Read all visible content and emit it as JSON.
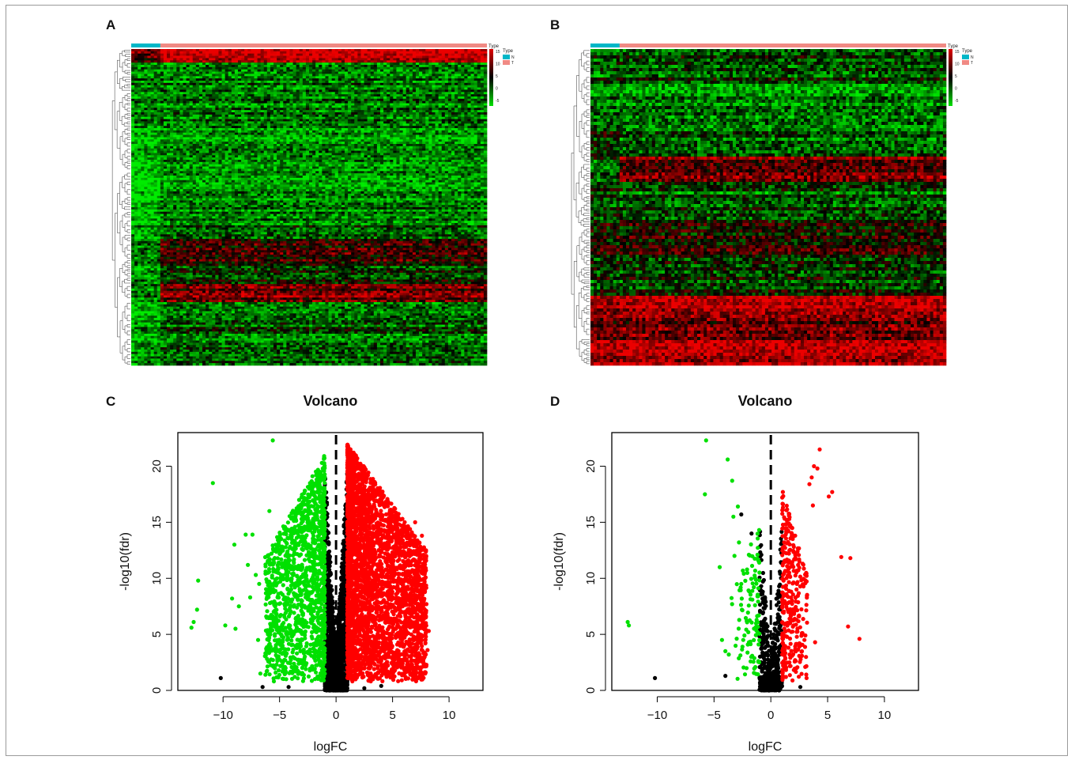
{
  "panels": {
    "A": "A",
    "B": "B",
    "C": "C",
    "D": "D"
  },
  "chart_data": [
    {
      "id": "A",
      "type": "heatmap",
      "title": "",
      "annotation": {
        "track_title": "Type",
        "legend_title": "Type",
        "groups": [
          {
            "label": "N",
            "color": "#00b7c7",
            "fraction": 0.082
          },
          {
            "label": "T",
            "color": "#f08a84",
            "fraction": 0.918
          }
        ]
      },
      "colorbar": {
        "ticks": [
          15,
          10,
          5,
          0,
          -5
        ],
        "low": "#00e000",
        "mid": "#000000",
        "high": "#e00000"
      },
      "dendrogram": "rows",
      "row_blocks": [
        {
          "rows": 6,
          "normal": 0.45,
          "tumor": 0.95
        },
        {
          "rows": 28,
          "normal": -0.55,
          "tumor": -0.5
        },
        {
          "rows": 20,
          "normal": -0.8,
          "tumor": -0.65
        },
        {
          "rows": 18,
          "normal": -0.9,
          "tumor": -0.55
        },
        {
          "rows": 12,
          "normal": -0.75,
          "tumor": -0.4
        },
        {
          "rows": 10,
          "normal": -0.5,
          "tumor": 0.25
        },
        {
          "rows": 10,
          "normal": -0.6,
          "tumor": -0.15
        },
        {
          "rows": 8,
          "normal": -0.55,
          "tumor": 0.45
        },
        {
          "rows": 14,
          "normal": -0.7,
          "tumor": -0.35
        },
        {
          "rows": 14,
          "normal": -0.6,
          "tumor": -0.4
        }
      ],
      "columns": 110
    },
    {
      "id": "B",
      "type": "heatmap",
      "title": "",
      "annotation": {
        "track_title": "Type",
        "legend_title": "Type",
        "groups": [
          {
            "label": "N",
            "color": "#00b7c7",
            "fraction": 0.082
          },
          {
            "label": "T",
            "color": "#f08a84",
            "fraction": 0.918
          }
        ]
      },
      "colorbar": {
        "ticks": [
          15,
          10,
          5,
          0,
          -5
        ],
        "low": "#00e000",
        "mid": "#000000",
        "high": "#e00000"
      },
      "dendrogram": "rows",
      "row_blocks": [
        {
          "rows": 10,
          "normal": -0.3,
          "tumor": -0.25
        },
        {
          "rows": 14,
          "normal": -0.45,
          "tumor": -0.5
        },
        {
          "rows": 10,
          "normal": -0.2,
          "tumor": -0.45
        },
        {
          "rows": 8,
          "normal": -0.35,
          "tumor": 0.5
        },
        {
          "rows": 12,
          "normal": -0.3,
          "tumor": -0.35
        },
        {
          "rows": 12,
          "normal": 0.05,
          "tumor": 0.1
        },
        {
          "rows": 12,
          "normal": -0.2,
          "tumor": -0.2
        },
        {
          "rows": 4,
          "normal": 0.8,
          "tumor": 0.85
        },
        {
          "rows": 10,
          "normal": 0.35,
          "tumor": 0.45
        },
        {
          "rows": 8,
          "normal": 0.6,
          "tumor": 0.65
        }
      ],
      "columns": 110
    },
    {
      "id": "C",
      "type": "scatter",
      "title": "Volcano",
      "xlabel": "logFC",
      "ylabel": "-log10(fdr)",
      "xlim": [
        -14,
        13
      ],
      "ylim": [
        0,
        23
      ],
      "xticks": [
        -10,
        -5,
        0,
        5,
        10
      ],
      "yticks": [
        0,
        5,
        10,
        15,
        20
      ],
      "cutoff_x": 0,
      "series": [
        {
          "color": "#00e000",
          "count": 1400,
          "x_range": [
            -6.3,
            -1.0
          ],
          "y_range": [
            0.8,
            21
          ]
        },
        {
          "color": "#ff0000",
          "count": 3400,
          "x_range": [
            1.0,
            8.0
          ],
          "y_range": [
            0.8,
            22
          ]
        },
        {
          "color": "#000000",
          "count": 1900,
          "x_range": [
            -1.0,
            1.0
          ],
          "y_range": [
            0,
            20
          ]
        }
      ],
      "outliers_green": [
        [
          -12.2,
          9.8
        ],
        [
          -12.6,
          6.1
        ],
        [
          -12.8,
          5.6
        ],
        [
          -12.3,
          7.2
        ],
        [
          -10.9,
          18.5
        ],
        [
          -9.8,
          5.8
        ],
        [
          -9.2,
          8.2
        ],
        [
          -9.0,
          13.0
        ],
        [
          -8.9,
          5.5
        ],
        [
          -8.6,
          7.5
        ],
        [
          -8.0,
          13.9
        ],
        [
          -7.8,
          11.2
        ],
        [
          -7.6,
          8.3
        ],
        [
          -7.4,
          13.9
        ],
        [
          -7.1,
          10.3
        ],
        [
          -6.9,
          4.5
        ],
        [
          -6.8,
          9.5
        ],
        [
          -6.7,
          1.5
        ],
        [
          -5.6,
          22.3
        ],
        [
          -5.9,
          16.0
        ]
      ],
      "outliers_red": [
        [
          8.2,
          5.3
        ],
        [
          8.1,
          3.6
        ],
        [
          7.9,
          4.2
        ],
        [
          7.8,
          11.0
        ],
        [
          8.0,
          7.7
        ],
        [
          7.6,
          13.8
        ],
        [
          7.3,
          12.3
        ],
        [
          7.0,
          15.0
        ],
        [
          6.8,
          9.6
        ]
      ],
      "outliers_black": [
        [
          -10.2,
          1.1
        ],
        [
          -6.5,
          0.3
        ],
        [
          -4.2,
          0.3
        ],
        [
          2.5,
          0.2
        ],
        [
          4.0,
          0.4
        ]
      ]
    },
    {
      "id": "D",
      "type": "scatter",
      "title": "Volcano",
      "xlabel": "logFC",
      "ylabel": "-log10(fdr)",
      "xlim": [
        -14,
        13
      ],
      "ylim": [
        0,
        23
      ],
      "xticks": [
        -10,
        -5,
        0,
        5,
        10
      ],
      "yticks": [
        0,
        5,
        10,
        15,
        20
      ],
      "cutoff_x": 0,
      "series": [
        {
          "color": "#00e000",
          "count": 110,
          "x_range": [
            -3.5,
            -1.0
          ],
          "y_range": [
            0.8,
            15
          ]
        },
        {
          "color": "#ff0000",
          "count": 330,
          "x_range": [
            1.0,
            3.2
          ],
          "y_range": [
            0.8,
            18
          ]
        },
        {
          "color": "#000000",
          "count": 600,
          "x_range": [
            -1.0,
            1.0
          ],
          "y_range": [
            0,
            15
          ]
        }
      ],
      "outliers_green": [
        [
          -12.6,
          6.1
        ],
        [
          -12.5,
          5.8
        ],
        [
          -5.7,
          22.3
        ],
        [
          -5.8,
          17.5
        ],
        [
          -4.5,
          11.0
        ],
        [
          -3.8,
          20.6
        ],
        [
          -3.4,
          18.7
        ],
        [
          -4.3,
          4.5
        ],
        [
          -4.0,
          3.5
        ],
        [
          -3.7,
          3.2
        ],
        [
          -3.3,
          15.5
        ],
        [
          -2.9,
          16.4
        ],
        [
          -3.2,
          12.0
        ],
        [
          -2.8,
          13.2
        ],
        [
          -2.6,
          9.5
        ]
      ],
      "outliers_red": [
        [
          7.8,
          4.6
        ],
        [
          7.0,
          11.8
        ],
        [
          6.8,
          5.7
        ],
        [
          6.2,
          11.9
        ],
        [
          5.4,
          17.7
        ],
        [
          5.1,
          17.3
        ],
        [
          4.3,
          21.5
        ],
        [
          4.1,
          19.8
        ],
        [
          3.8,
          20.0
        ],
        [
          3.6,
          19.0
        ],
        [
          3.4,
          18.4
        ],
        [
          3.7,
          16.5
        ],
        [
          3.9,
          4.3
        ]
      ],
      "outliers_black": [
        [
          -10.2,
          1.1
        ],
        [
          -2.6,
          15.7
        ],
        [
          -4.0,
          1.3
        ],
        [
          -1.7,
          14.0
        ],
        [
          2.6,
          0.3
        ]
      ]
    }
  ]
}
